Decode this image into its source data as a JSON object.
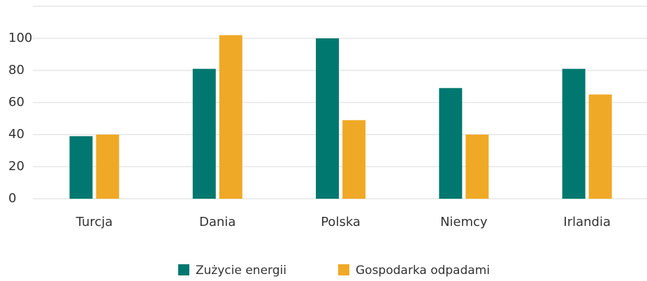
{
  "chart_data": {
    "type": "bar",
    "categories": [
      "Turcja",
      "Dania",
      "Polska",
      "Niemcy",
      "Irlandia"
    ],
    "series": [
      {
        "name": "Zużycie energii",
        "color": "#00786f",
        "values": [
          39,
          81,
          100,
          69,
          81
        ]
      },
      {
        "name": "Gospodarka odpadami",
        "color": "#f0a926",
        "values": [
          40,
          102,
          49,
          40,
          65
        ]
      }
    ],
    "ylim": [
      0,
      120
    ],
    "yticks": [
      0,
      20,
      40,
      60,
      80,
      100
    ],
    "grid": true,
    "legend": "bottom"
  }
}
